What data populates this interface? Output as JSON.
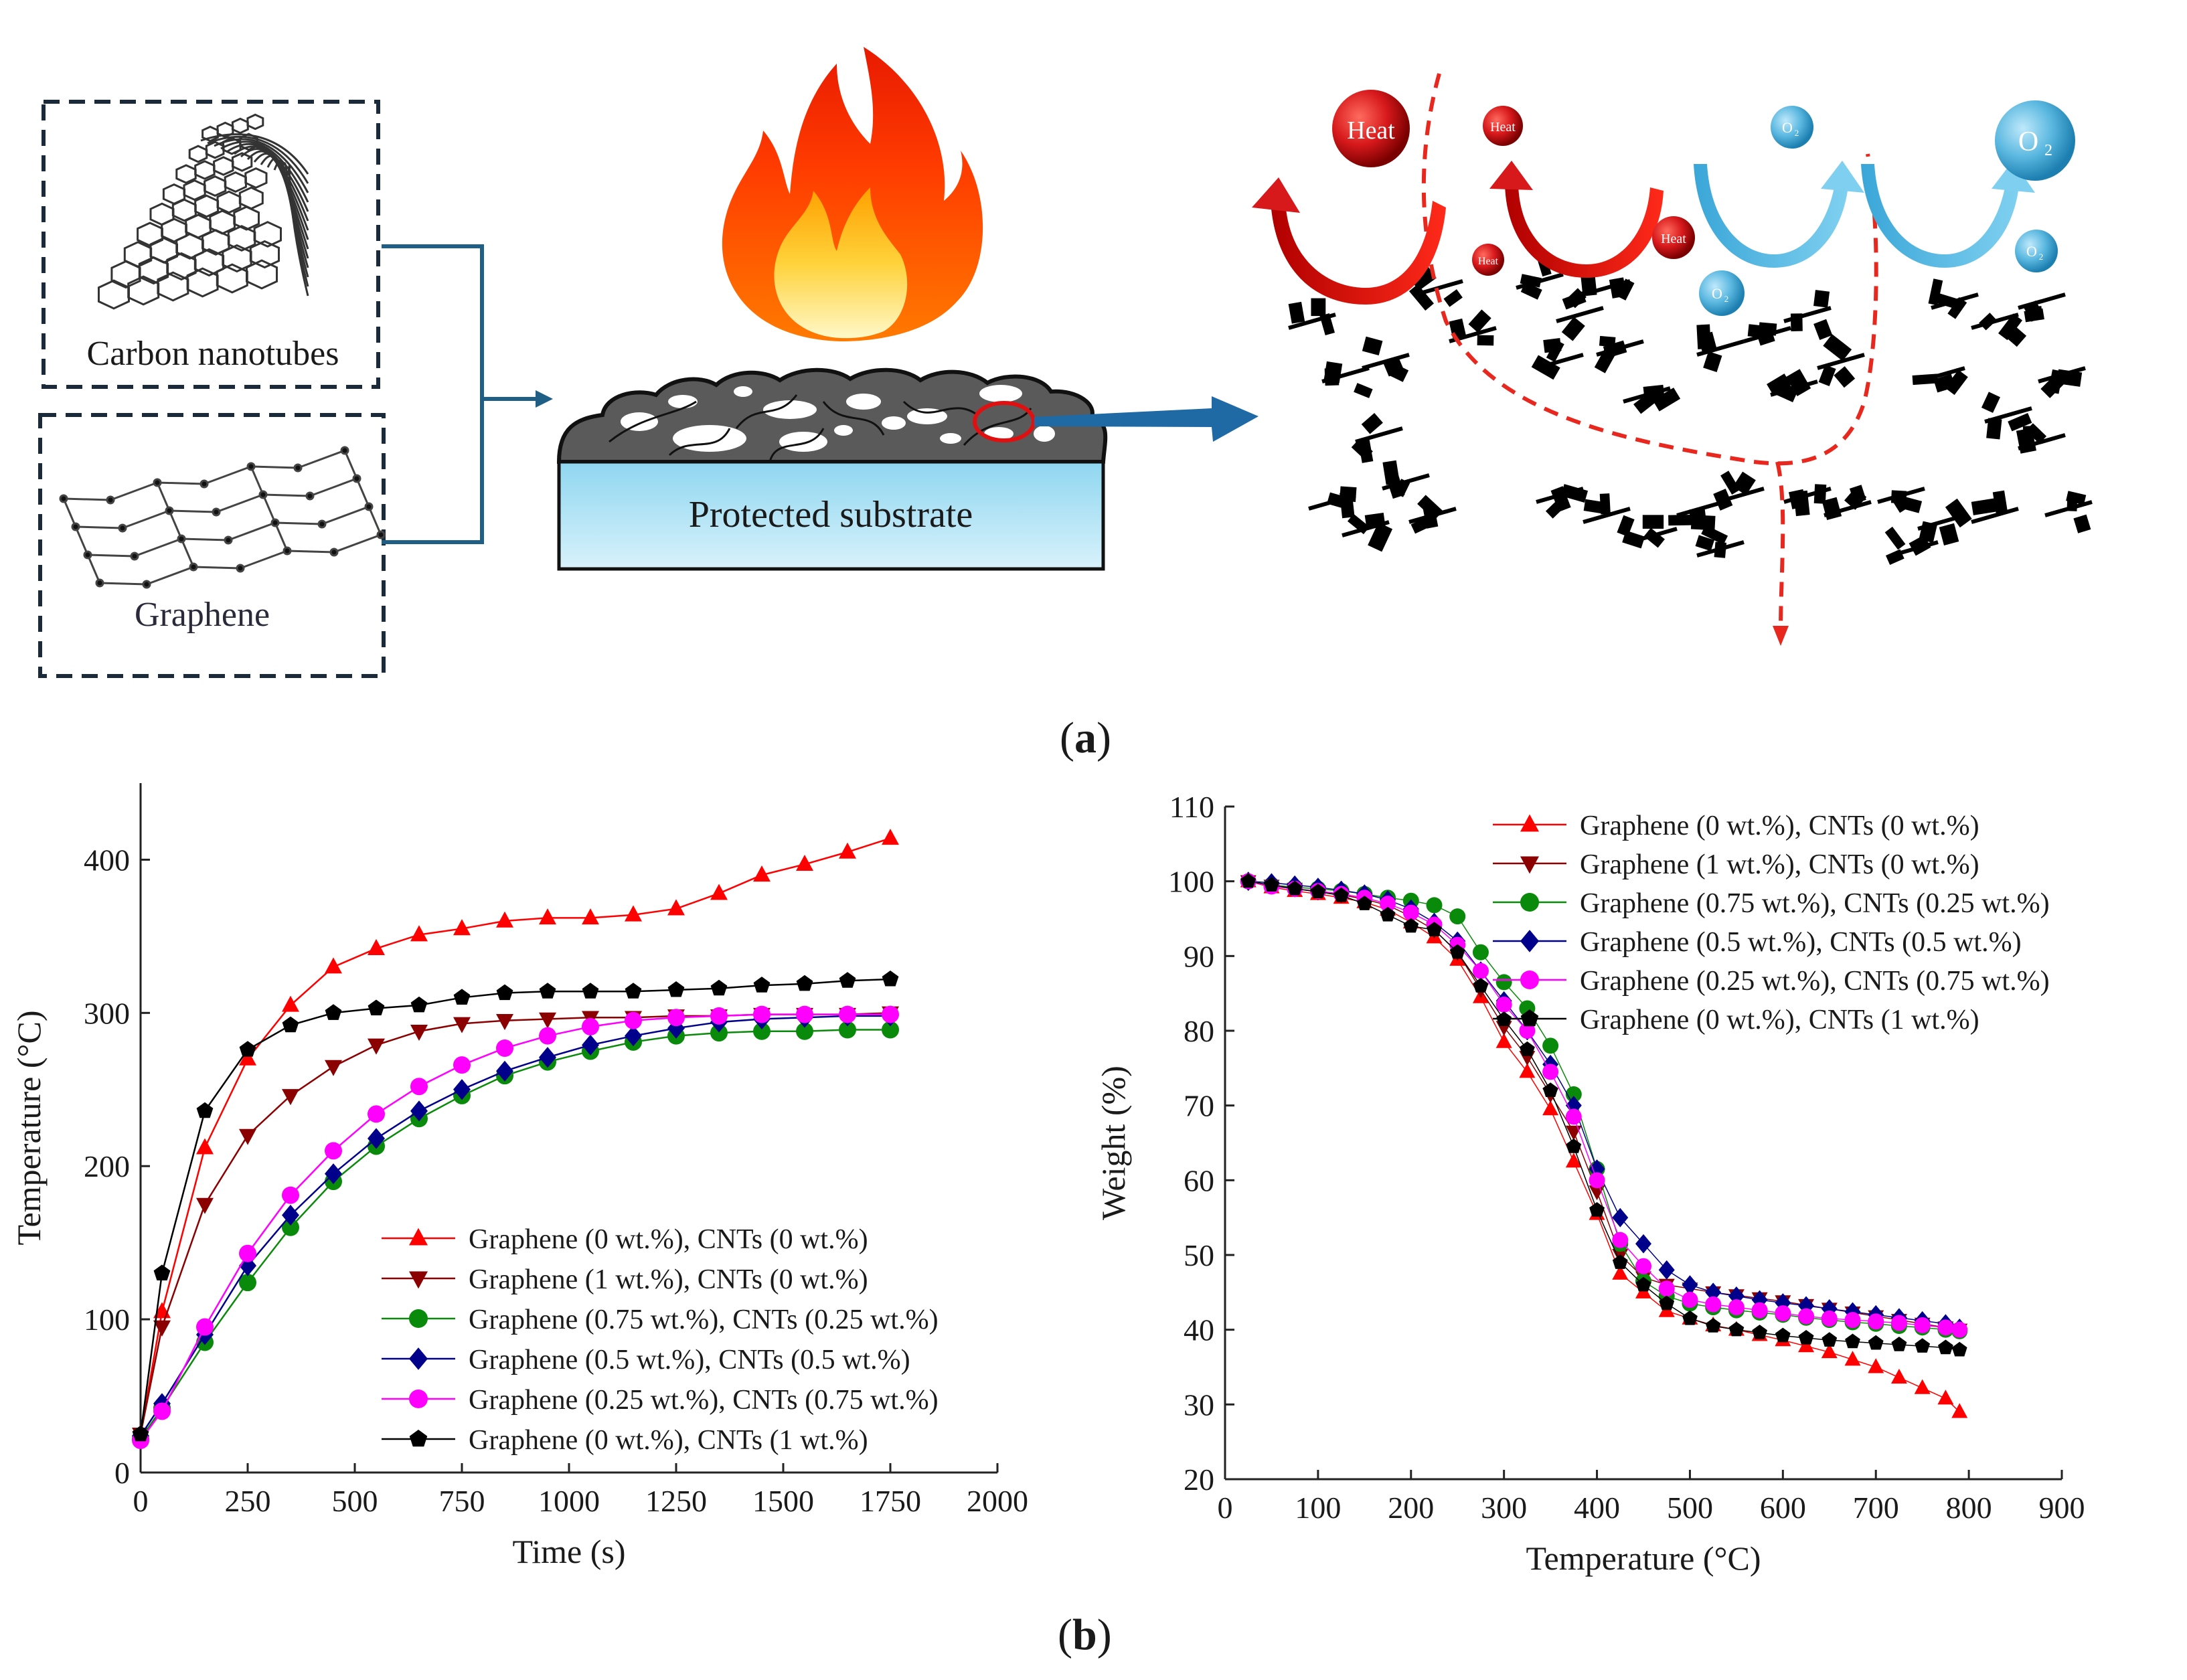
{
  "schematic": {
    "cnt_label": "Carbon nanotubes",
    "graphene_label": "Graphene",
    "substrate_label": "Protected substrate",
    "heat_label": "Heat",
    "oxygen_label": "O",
    "oxygen_sub": "2"
  },
  "labels": {
    "a": "a",
    "b": "b"
  },
  "colors": {
    "arrow": "#1f6aa5",
    "connector": "#1f5f86",
    "heat": "#d7191c",
    "oxygen": "#5bb8e0",
    "substrate_top": "#8fd6f0",
    "char": "#000000",
    "path": "#e8281e"
  },
  "chart_data": [
    {
      "type": "line",
      "xlabel": "Time (s)",
      "ylabel": "Temperature (°C)",
      "xlim": [
        0,
        2000
      ],
      "ylim": [
        0,
        450
      ],
      "xticks": [
        0,
        250,
        500,
        750,
        1000,
        1250,
        1500,
        1750,
        2000
      ],
      "yticks": [
        0,
        100,
        200,
        300,
        400
      ],
      "legend_position": "center-right",
      "x": [
        0,
        50,
        150,
        250,
        350,
        450,
        550,
        650,
        750,
        850,
        950,
        1050,
        1150,
        1250,
        1350,
        1450,
        1550,
        1650,
        1750
      ],
      "series": [
        {
          "name": "Graphene (0 wt.%), CNTs (0 wt.%)",
          "color": "#ff0000",
          "marker": "triangle-up",
          "values": [
            25,
            105,
            212,
            270,
            305,
            330,
            342,
            351,
            355,
            360,
            362,
            362,
            364,
            368,
            378,
            390,
            397,
            405,
            414
          ]
        },
        {
          "name": "Graphene (1 wt.%), CNTs (0 wt.%)",
          "color": "#8b0000",
          "marker": "triangle-down",
          "values": [
            25,
            95,
            175,
            220,
            246,
            265,
            279,
            288,
            293,
            295,
            296,
            297,
            297,
            298,
            298,
            299,
            299,
            299,
            300
          ]
        },
        {
          "name": "Graphene (0.75 wt.%), CNTs (0.25 wt.%)",
          "color": "#0a8a0a",
          "marker": "circle",
          "values": [
            22,
            42,
            85,
            124,
            160,
            190,
            213,
            231,
            246,
            259,
            268,
            275,
            281,
            285,
            287,
            288,
            288,
            289,
            289
          ]
        },
        {
          "name": "Graphene (0.5 wt.%), CNTs (0.5 wt.%)",
          "color": "#00008b",
          "marker": "diamond",
          "values": [
            24,
            45,
            90,
            135,
            168,
            195,
            218,
            236,
            250,
            262,
            271,
            279,
            285,
            290,
            294,
            296,
            297,
            298,
            298
          ]
        },
        {
          "name": "Graphene (0.25 wt.%), CNTs (0.75 wt.%)",
          "color": "#ff00ff",
          "marker": "circle",
          "values": [
            21,
            40,
            95,
            143,
            181,
            210,
            234,
            252,
            266,
            277,
            285,
            291,
            295,
            297,
            298,
            299,
            299,
            299,
            299
          ]
        },
        {
          "name": "Graphene (0 wt.%), CNTs (1 wt.%)",
          "color": "#000000",
          "marker": "pentagon",
          "values": [
            25,
            130,
            236,
            276,
            292,
            300,
            303,
            305,
            310,
            313,
            314,
            314,
            314,
            315,
            316,
            318,
            319,
            321,
            322
          ]
        }
      ]
    },
    {
      "type": "scatter",
      "xlabel": "Temperature (°C)",
      "ylabel": "Weight (%)",
      "xlim": [
        0,
        900
      ],
      "ylim": [
        20,
        110
      ],
      "xticks": [
        0,
        100,
        200,
        300,
        400,
        500,
        600,
        700,
        800,
        900
      ],
      "yticks": [
        20,
        30,
        40,
        50,
        60,
        70,
        80,
        90,
        100,
        110
      ],
      "legend_position": "top-right",
      "x": [
        25,
        50,
        75,
        100,
        125,
        150,
        175,
        200,
        225,
        250,
        275,
        300,
        325,
        350,
        375,
        400,
        425,
        450,
        475,
        500,
        525,
        550,
        575,
        600,
        625,
        650,
        675,
        700,
        725,
        750,
        775,
        790
      ],
      "series": [
        {
          "name": "Graphene (0 wt.%), CNTs (0 wt.%)",
          "color": "#ff0000",
          "marker": "triangle-up",
          "values": [
            100,
            99.2,
            98.7,
            98.3,
            97.8,
            97.2,
            96.2,
            94.5,
            92.5,
            89.5,
            84.5,
            78.5,
            74.5,
            69.5,
            62.5,
            55.5,
            47.5,
            45.0,
            42.5,
            41.5,
            40.6,
            40.0,
            39.3,
            38.6,
            37.8,
            37.0,
            36.0,
            35.0,
            33.6,
            32.2,
            30.8,
            29.0
          ]
        },
        {
          "name": "Graphene (1 wt.%), CNTs (0 wt.%)",
          "color": "#8b0000",
          "marker": "triangle-down",
          "values": [
            100,
            99.4,
            99.0,
            98.6,
            98.2,
            97.6,
            96.8,
            95.3,
            93.5,
            90.5,
            85.5,
            80.5,
            76.5,
            71.5,
            66.5,
            58.5,
            50.0,
            47.0,
            46.0,
            45.5,
            45.0,
            44.6,
            44.2,
            43.8,
            43.3,
            42.8,
            42.3,
            41.8,
            41.3,
            40.8,
            40.3,
            40.0
          ]
        },
        {
          "name": "Graphene (0.75 wt.%), CNTs (0.25 wt.%)",
          "color": "#0a8a0a",
          "marker": "circle",
          "values": [
            100,
            99.5,
            99.2,
            99.0,
            98.7,
            98.3,
            97.8,
            97.4,
            96.8,
            95.3,
            90.5,
            86.5,
            83.0,
            78.0,
            71.5,
            61.5,
            51.5,
            46.5,
            44.5,
            43.5,
            43.0,
            42.6,
            42.3,
            42.0,
            41.6,
            41.3,
            41.0,
            40.8,
            40.5,
            40.3,
            40.0,
            39.8
          ]
        },
        {
          "name": "Graphene (0.5 wt.%), CNTs (0.5 wt.%)",
          "color": "#00008b",
          "marker": "diamond",
          "values": [
            100,
            99.8,
            99.5,
            99.2,
            98.8,
            98.3,
            97.5,
            96.3,
            94.5,
            92.0,
            88.0,
            84.0,
            80.0,
            75.5,
            70.0,
            61.5,
            55.0,
            51.5,
            48.0,
            46.0,
            45.0,
            44.5,
            44.0,
            43.6,
            43.2,
            42.8,
            42.4,
            42.0,
            41.6,
            41.2,
            40.8,
            40.2
          ]
        },
        {
          "name": "Graphene (0.25 wt.%), CNTs (0.75 wt.%)",
          "color": "#ff00ff",
          "marker": "circle",
          "values": [
            100,
            99.3,
            99.0,
            98.7,
            98.3,
            97.8,
            97.0,
            95.8,
            94.2,
            91.5,
            88.0,
            83.5,
            80.0,
            74.5,
            68.5,
            60.0,
            52.0,
            48.5,
            45.5,
            44.0,
            43.4,
            43.0,
            42.6,
            42.2,
            41.8,
            41.5,
            41.3,
            41.1,
            40.9,
            40.6,
            40.3,
            40.0
          ]
        },
        {
          "name": "Graphene (0 wt.%), CNTs (1 wt.%)",
          "color": "#000000",
          "marker": "pentagon",
          "values": [
            100,
            99.5,
            99.0,
            98.6,
            98.1,
            97.0,
            95.5,
            94.0,
            93.5,
            90.5,
            86.0,
            81.5,
            77.5,
            72.0,
            64.5,
            56.0,
            49.0,
            46.0,
            43.5,
            41.5,
            40.5,
            40.0,
            39.6,
            39.2,
            38.9,
            38.6,
            38.4,
            38.2,
            38.0,
            37.8,
            37.6,
            37.3
          ]
        }
      ]
    }
  ]
}
